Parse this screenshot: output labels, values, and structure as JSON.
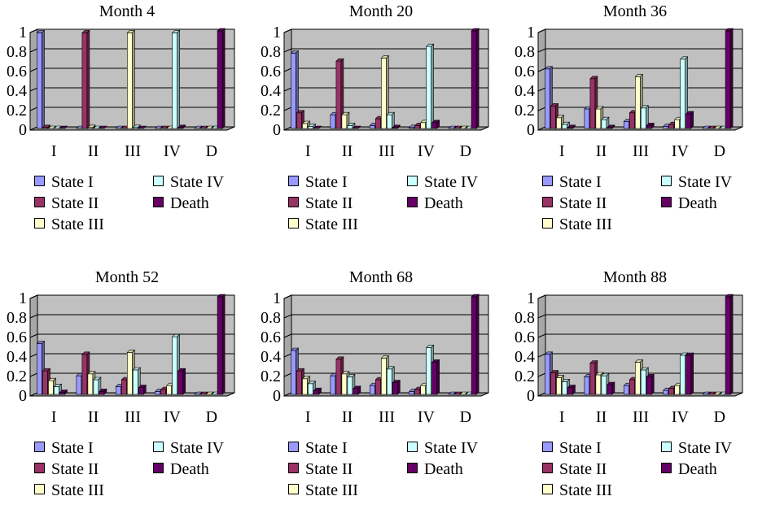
{
  "colors": {
    "wall": "#c0c0c0",
    "floor": "#9a9a9a",
    "grid": "#000000",
    "state_i": "#9999ff",
    "state_ii": "#993366",
    "state_iii": "#ffffcc",
    "state_iv": "#ccffff",
    "death": "#660066"
  },
  "legend": {
    "entries": [
      "State I",
      "State IV",
      "State II",
      "Death",
      "State III"
    ]
  },
  "chart_data": [
    {
      "type": "bar",
      "title": "Month 4",
      "categories": [
        "I",
        "II",
        "III",
        "IV",
        "D"
      ],
      "y_ticks": [
        "0",
        "0.2",
        "0.4",
        "0.6",
        "0.8",
        "1"
      ],
      "ylim": [
        0,
        1
      ],
      "grid": true,
      "legend_position": "bottom",
      "series": [
        {
          "name": "State I",
          "values": [
            0.98,
            0.0,
            0.0,
            0.0,
            0.0
          ]
        },
        {
          "name": "State II",
          "values": [
            0.01,
            0.98,
            0.0,
            0.0,
            0.0
          ]
        },
        {
          "name": "State III",
          "values": [
            0.0,
            0.01,
            0.98,
            0.0,
            0.0
          ]
        },
        {
          "name": "State IV",
          "values": [
            0.0,
            0.0,
            0.01,
            0.98,
            0.0
          ]
        },
        {
          "name": "Death",
          "values": [
            0.0,
            0.0,
            0.0,
            0.01,
            1.0
          ]
        }
      ]
    },
    {
      "type": "bar",
      "title": "Month 20",
      "categories": [
        "I",
        "II",
        "III",
        "IV",
        "D"
      ],
      "y_ticks": [
        "0",
        "0.2",
        "0.4",
        "0.6",
        "0.8",
        "1"
      ],
      "ylim": [
        0,
        1
      ],
      "grid": true,
      "legend_position": "bottom",
      "series": [
        {
          "name": "State I",
          "values": [
            0.77,
            0.14,
            0.03,
            0.01,
            0.0
          ]
        },
        {
          "name": "State II",
          "values": [
            0.16,
            0.69,
            0.1,
            0.03,
            0.0
          ]
        },
        {
          "name": "State III",
          "values": [
            0.05,
            0.14,
            0.72,
            0.06,
            0.0
          ]
        },
        {
          "name": "State IV",
          "values": [
            0.02,
            0.03,
            0.14,
            0.84,
            0.0
          ]
        },
        {
          "name": "Death",
          "values": [
            0.0,
            0.0,
            0.01,
            0.06,
            1.0
          ]
        }
      ]
    },
    {
      "type": "bar",
      "title": "Month 36",
      "categories": [
        "I",
        "II",
        "III",
        "IV",
        "D"
      ],
      "y_ticks": [
        "0",
        "0.2",
        "0.4",
        "0.6",
        "0.8",
        "1"
      ],
      "ylim": [
        0,
        1
      ],
      "grid": true,
      "legend_position": "bottom",
      "series": [
        {
          "name": "State I",
          "values": [
            0.61,
            0.2,
            0.07,
            0.02,
            0.0
          ]
        },
        {
          "name": "State II",
          "values": [
            0.23,
            0.51,
            0.16,
            0.04,
            0.0
          ]
        },
        {
          "name": "State III",
          "values": [
            0.11,
            0.2,
            0.53,
            0.09,
            0.0
          ]
        },
        {
          "name": "State IV",
          "values": [
            0.04,
            0.09,
            0.21,
            0.71,
            0.0
          ]
        },
        {
          "name": "Death",
          "values": [
            0.01,
            0.01,
            0.03,
            0.15,
            1.0
          ]
        }
      ]
    },
    {
      "type": "bar",
      "title": "Month 52",
      "categories": [
        "I",
        "II",
        "III",
        "IV",
        "D"
      ],
      "y_ticks": [
        "0",
        "0.2",
        "0.4",
        "0.6",
        "0.8",
        "1"
      ],
      "ylim": [
        0,
        1
      ],
      "grid": true,
      "legend_position": "bottom",
      "series": [
        {
          "name": "State I",
          "values": [
            0.52,
            0.19,
            0.08,
            0.03,
            0.0
          ]
        },
        {
          "name": "State II",
          "values": [
            0.24,
            0.41,
            0.15,
            0.05,
            0.0
          ]
        },
        {
          "name": "State III",
          "values": [
            0.14,
            0.21,
            0.43,
            0.09,
            0.0
          ]
        },
        {
          "name": "State IV",
          "values": [
            0.08,
            0.15,
            0.25,
            0.59,
            0.0
          ]
        },
        {
          "name": "Death",
          "values": [
            0.02,
            0.03,
            0.07,
            0.24,
            1.0
          ]
        }
      ]
    },
    {
      "type": "bar",
      "title": "Month 68",
      "categories": [
        "I",
        "II",
        "III",
        "IV",
        "D"
      ],
      "y_ticks": [
        "0",
        "0.2",
        "0.4",
        "0.6",
        "0.8",
        "1"
      ],
      "ylim": [
        0,
        1
      ],
      "grid": true,
      "legend_position": "bottom",
      "series": [
        {
          "name": "State I",
          "values": [
            0.45,
            0.19,
            0.09,
            0.03,
            0.0
          ]
        },
        {
          "name": "State II",
          "values": [
            0.24,
            0.36,
            0.15,
            0.05,
            0.0
          ]
        },
        {
          "name": "State III",
          "values": [
            0.16,
            0.21,
            0.37,
            0.09,
            0.0
          ]
        },
        {
          "name": "State IV",
          "values": [
            0.11,
            0.18,
            0.26,
            0.48,
            0.0
          ]
        },
        {
          "name": "Death",
          "values": [
            0.04,
            0.06,
            0.12,
            0.33,
            1.0
          ]
        }
      ]
    },
    {
      "type": "bar",
      "title": "Month 88",
      "categories": [
        "I",
        "II",
        "III",
        "IV",
        "D"
      ],
      "y_ticks": [
        "0",
        "0.2",
        "0.4",
        "0.6",
        "0.8",
        "1"
      ],
      "ylim": [
        0,
        1
      ],
      "grid": true,
      "legend_position": "bottom",
      "series": [
        {
          "name": "State I",
          "values": [
            0.41,
            0.18,
            0.09,
            0.04,
            0.0
          ]
        },
        {
          "name": "State II",
          "values": [
            0.22,
            0.32,
            0.15,
            0.06,
            0.0
          ]
        },
        {
          "name": "State III",
          "values": [
            0.17,
            0.2,
            0.33,
            0.09,
            0.0
          ]
        },
        {
          "name": "State IV",
          "values": [
            0.13,
            0.19,
            0.25,
            0.4,
            0.0
          ]
        },
        {
          "name": "Death",
          "values": [
            0.07,
            0.1,
            0.18,
            0.4,
            1.0
          ]
        }
      ]
    }
  ]
}
